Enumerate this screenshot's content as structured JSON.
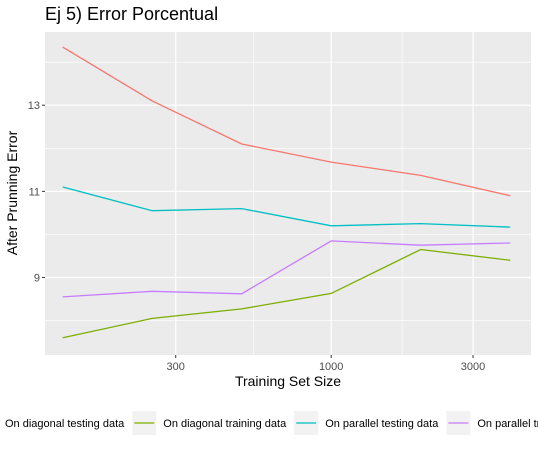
{
  "chart_data": {
    "type": "line",
    "title": "Ej 5) Error Porcentual",
    "xlabel": "Training Set Size",
    "ylabel": "After Prunning Error",
    "x_scale": "log10",
    "xlim": [
      109,
      4700
    ],
    "ylim": [
      7.2,
      14.7
    ],
    "x_ticks": [
      300,
      1000,
      3000
    ],
    "x_tick_labels": [
      "300",
      "1000",
      "3000"
    ],
    "y_ticks": [
      9,
      11,
      13
    ],
    "y_tick_labels": [
      "9",
      "11",
      "13"
    ],
    "grid": true,
    "legend_position": "bottom",
    "x": [
      125,
      250,
      500,
      1000,
      2000,
      4000
    ],
    "series": [
      {
        "name": "On diagonal testing data",
        "color": "#f8766d",
        "values": [
          14.35,
          13.1,
          12.1,
          11.68,
          11.37,
          10.9
        ]
      },
      {
        "name": "On diagonal training data",
        "color": "#7cae00",
        "values": [
          7.6,
          8.05,
          8.27,
          8.63,
          9.65,
          9.4
        ]
      },
      {
        "name": "On parallel testing data",
        "color": "#00bfc4",
        "values": [
          11.1,
          10.55,
          10.6,
          10.2,
          10.25,
          10.17
        ]
      },
      {
        "name": "On parallel training data",
        "color": "#c77cff",
        "values": [
          8.55,
          8.68,
          8.62,
          9.85,
          9.75,
          9.8
        ]
      }
    ]
  }
}
